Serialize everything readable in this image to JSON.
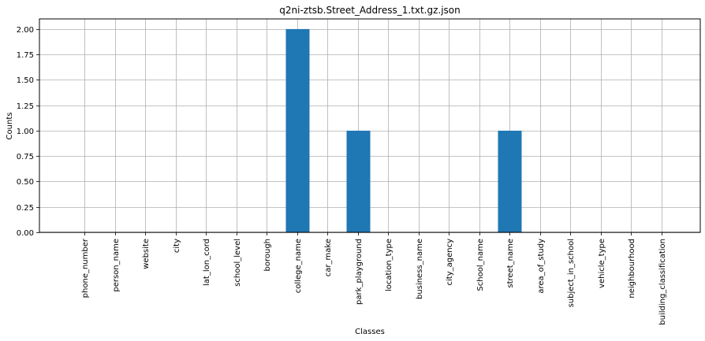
{
  "chart_data": {
    "type": "bar",
    "title": "q2ni-ztsb.Street_Address_1.txt.gz.json",
    "xlabel": "Classes",
    "ylabel": "Counts",
    "categories": [
      "phone_number",
      "person_name",
      "website",
      "city",
      "lat_lon_cord",
      "school_level",
      "borough",
      "college_name",
      "car_make",
      "park_playground",
      "location_type",
      "business_name",
      "city_agency",
      "School_name",
      "street_name",
      "area_of_study",
      "subject_in_school",
      "vehicle_type",
      "neighbourhood",
      "building_classification"
    ],
    "values": [
      0,
      0,
      0,
      0,
      0,
      0,
      0,
      2,
      0,
      1,
      0,
      0,
      0,
      0,
      1,
      0,
      0,
      0,
      0,
      0
    ],
    "ylim": [
      0,
      2.1
    ],
    "yticks": [
      "0.00",
      "0.25",
      "0.50",
      "0.75",
      "1.00",
      "1.25",
      "1.50",
      "1.75",
      "2.00"
    ],
    "grid": true,
    "bar_color": "#1f77b4",
    "grid_color": "#b0b0b0",
    "axis_color": "#000000"
  }
}
